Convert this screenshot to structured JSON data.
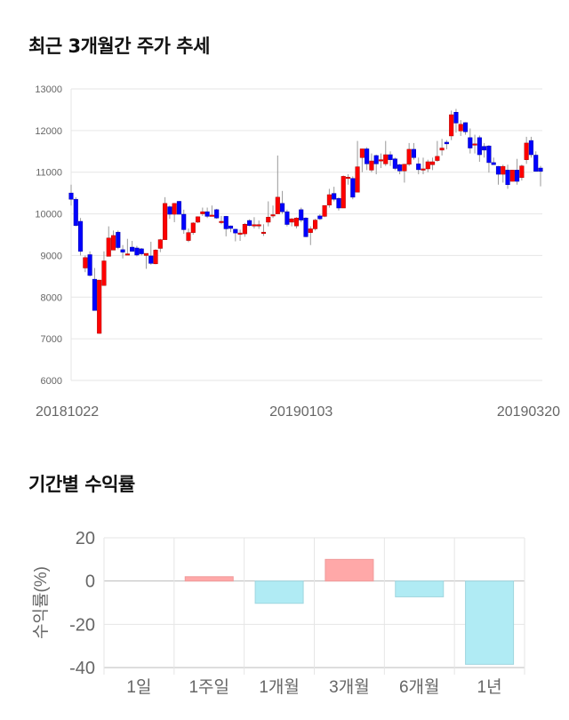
{
  "colors": {
    "up": "#ff0000",
    "down": "#0000ff",
    "wick": "#999999",
    "pos_bar": "#ffa8a8",
    "neg_bar": "#b0ebf4"
  },
  "chart_data": [
    {
      "type": "candlestick",
      "title": "최근 3개월간 주가 추세",
      "ylim": [
        6000,
        13000
      ],
      "yticks": [
        "6000",
        "7000",
        "8000",
        "9000",
        "10000",
        "11000",
        "12000",
        "13000"
      ],
      "xticks": [
        {
          "label": "20181022",
          "index": 0
        },
        {
          "label": "20190103",
          "index": 49
        },
        {
          "label": "20190320",
          "index": 101
        }
      ],
      "grid": true,
      "ohlc": [
        [
          10500,
          10700,
          10200,
          10350
        ],
        [
          10350,
          10400,
          9700,
          9720
        ],
        [
          9820,
          9900,
          9000,
          9100
        ],
        [
          8700,
          9000,
          8600,
          8950
        ],
        [
          9020,
          9100,
          8500,
          8520
        ],
        [
          8430,
          8700,
          7680,
          7680
        ],
        [
          7130,
          8410,
          7120,
          8410
        ],
        [
          8280,
          9100,
          8280,
          8870
        ],
        [
          8980,
          9700,
          8980,
          9420
        ],
        [
          9130,
          9600,
          9130,
          9480
        ],
        [
          9560,
          9600,
          9150,
          9190
        ],
        [
          9140,
          9250,
          8930,
          9080
        ],
        [
          9020,
          9400,
          9020,
          9040
        ],
        [
          9200,
          9350,
          9100,
          9100
        ],
        [
          9180,
          9230,
          8980,
          9010
        ],
        [
          9160,
          9180,
          9000,
          9040
        ],
        [
          9000,
          9050,
          8680,
          9050
        ],
        [
          8990,
          9330,
          8780,
          8810
        ],
        [
          8800,
          9150,
          8790,
          9130
        ],
        [
          9170,
          9400,
          9080,
          9380
        ],
        [
          9380,
          10400,
          9380,
          10250
        ],
        [
          10170,
          10200,
          9880,
          9990
        ],
        [
          9990,
          10260,
          9800,
          10250
        ],
        [
          10300,
          10310,
          9990,
          9990
        ],
        [
          9990,
          10100,
          9520,
          9620
        ],
        [
          9360,
          9650,
          9320,
          9550
        ],
        [
          9550,
          9800,
          9500,
          9780
        ],
        [
          9800,
          9940,
          9780,
          9930
        ],
        [
          10000,
          10150,
          9950,
          10050
        ],
        [
          10050,
          10150,
          9900,
          9940
        ],
        [
          9970,
          10200,
          9950,
          9970
        ],
        [
          10100,
          10120,
          9880,
          9900
        ],
        [
          9820,
          9950,
          9750,
          9820
        ],
        [
          9940,
          9950,
          9460,
          9640
        ],
        [
          9710,
          9720,
          9560,
          9650
        ],
        [
          9630,
          9640,
          9340,
          9540
        ],
        [
          9540,
          9620,
          9350,
          9540
        ],
        [
          9520,
          9780,
          9450,
          9750
        ],
        [
          9840,
          9870,
          9700,
          9720
        ],
        [
          9740,
          9920,
          9650,
          9740
        ],
        [
          9740,
          9840,
          9640,
          9740
        ],
        [
          9530,
          9750,
          9470,
          9560
        ],
        [
          9800,
          10300,
          9700,
          9920
        ],
        [
          9950,
          10200,
          9900,
          9980
        ],
        [
          10000,
          11400,
          10000,
          10400
        ],
        [
          10250,
          10550,
          10000,
          10050
        ],
        [
          10050,
          10100,
          9700,
          9745
        ],
        [
          9800,
          9900,
          9700,
          9880
        ],
        [
          9710,
          9920,
          9650,
          9900
        ],
        [
          10100,
          10150,
          9800,
          9850
        ],
        [
          9900,
          9920,
          9440,
          9450
        ],
        [
          9550,
          9700,
          9250,
          9640
        ],
        [
          9640,
          9880,
          9600,
          9850
        ],
        [
          9950,
          9990,
          9850,
          9880
        ],
        [
          9940,
          10200,
          9920,
          10200
        ],
        [
          10210,
          10600,
          10150,
          10460
        ],
        [
          10490,
          10650,
          10300,
          10350
        ],
        [
          10370,
          10400,
          10080,
          10140
        ],
        [
          10140,
          10920,
          10140,
          10900
        ],
        [
          10880,
          10950,
          10700,
          10880
        ],
        [
          10850,
          10900,
          10350,
          10400
        ],
        [
          10520,
          11750,
          10520,
          11130
        ],
        [
          11350,
          11560,
          11000,
          11560
        ],
        [
          11560,
          11600,
          11050,
          11200
        ],
        [
          11050,
          11450,
          11000,
          11270
        ],
        [
          11400,
          11420,
          10950,
          11200
        ],
        [
          11300,
          11450,
          11100,
          11300
        ],
        [
          11200,
          11750,
          11150,
          11420
        ],
        [
          11420,
          11500,
          11150,
          11300
        ],
        [
          11320,
          11350,
          11050,
          11090
        ],
        [
          11180,
          11200,
          10950,
          11030
        ],
        [
          11030,
          11200,
          10750,
          11190
        ],
        [
          11190,
          11700,
          11150,
          11550
        ],
        [
          11550,
          11700,
          11300,
          11350
        ],
        [
          11200,
          11350,
          10950,
          11060
        ],
        [
          11080,
          11350,
          10950,
          11080
        ],
        [
          11080,
          11300,
          11000,
          11250
        ],
        [
          11180,
          11350,
          11050,
          11250
        ],
        [
          11280,
          11750,
          11250,
          11380
        ],
        [
          11530,
          11800,
          11400,
          11580
        ],
        [
          11720,
          11770,
          11550,
          11680
        ],
        [
          11870,
          12480,
          11770,
          12380
        ],
        [
          12440,
          12520,
          11950,
          12180
        ],
        [
          11990,
          12250,
          11870,
          12150
        ],
        [
          12190,
          12200,
          11900,
          11970
        ],
        [
          11830,
          12050,
          11450,
          11580
        ],
        [
          11680,
          11900,
          11450,
          11680
        ],
        [
          11830,
          11880,
          11250,
          11420
        ],
        [
          11620,
          11700,
          11350,
          11530
        ],
        [
          11630,
          11650,
          10990,
          11230
        ],
        [
          11230,
          11350,
          11180,
          11180
        ],
        [
          11140,
          11150,
          10700,
          10950
        ],
        [
          10950,
          11180,
          10750,
          11140
        ],
        [
          11050,
          11180,
          10600,
          10700
        ],
        [
          10780,
          11050,
          10780,
          11050
        ],
        [
          11050,
          11320,
          10700,
          10780
        ],
        [
          10870,
          11180,
          10800,
          11150
        ],
        [
          11300,
          11850,
          11200,
          11700
        ],
        [
          11760,
          11850,
          11350,
          11420
        ],
        [
          11410,
          11500,
          11020,
          11020
        ],
        [
          11100,
          11150,
          10660,
          11020
        ]
      ]
    },
    {
      "type": "bar",
      "title": "기간별 수익률",
      "ylabel": "수익률(%)",
      "ylim": [
        -40,
        20
      ],
      "yticks": [
        "20",
        "0",
        "-20",
        "-40"
      ],
      "categories": [
        "1일",
        "1주일",
        "1개월",
        "3개월",
        "6개월",
        "1년"
      ],
      "values": [
        0,
        2,
        -10.3,
        10,
        -7.3,
        -38.5
      ],
      "grid": true
    }
  ]
}
